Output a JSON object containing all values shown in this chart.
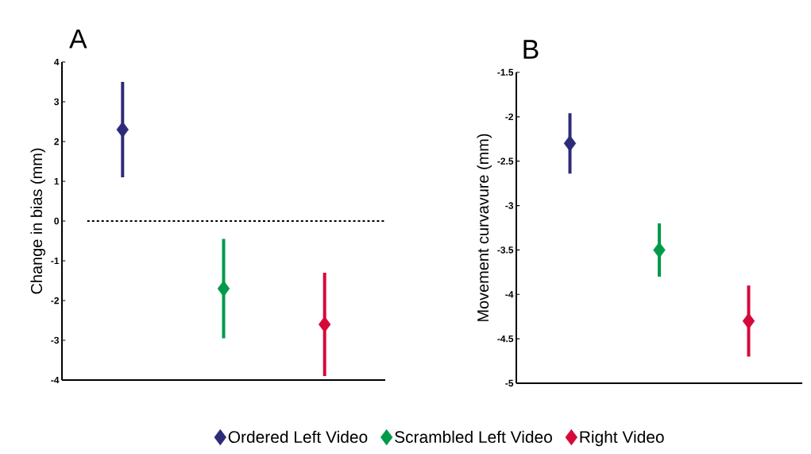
{
  "chart_data": [
    {
      "type": "scatter",
      "title": "A",
      "ylabel": "Change in bias (mm)",
      "categories": [
        null,
        null,
        null
      ],
      "ylim": [
        -4,
        4
      ],
      "yticks": [
        -4,
        -3,
        -2,
        -1,
        0,
        1,
        2,
        3,
        4
      ],
      "marker": "diamond",
      "legend": "bottom",
      "ref_lines": [
        {
          "axis": "y",
          "value": 0,
          "color": "#000000",
          "line_style": "dashed"
        }
      ],
      "series": [
        {
          "name": "Ordered Left Video",
          "color": "#2e2a7a",
          "values": [
            2.3,
            null,
            null
          ],
          "errors": [
            1.2,
            null,
            null
          ]
        },
        {
          "name": "Scrambled Left Video",
          "color": "#009a4a",
          "values": [
            null,
            -1.7,
            null
          ],
          "errors": [
            null,
            1.25,
            null
          ]
        },
        {
          "name": "Right Video",
          "color": "#d7083a",
          "values": [
            null,
            null,
            -2.6
          ],
          "errors": [
            null,
            null,
            1.3
          ]
        }
      ]
    },
    {
      "type": "scatter",
      "title": "B",
      "ylabel": "Movement curvavure (mm)",
      "categories": [
        null,
        null,
        null
      ],
      "ylim": [
        -5,
        -1.5
      ],
      "yticks": [
        -5,
        -4.5,
        -4,
        -3.5,
        -3,
        -2.5,
        -2,
        -1.5
      ],
      "marker": "diamond",
      "series": [
        {
          "color": "#2e2a7a",
          "values": [
            -2.3,
            null,
            null
          ],
          "errors": [
            0.34,
            null,
            null
          ]
        },
        {
          "color": "#009a4a",
          "values": [
            null,
            -3.5,
            null
          ],
          "errors": [
            null,
            0.3,
            null
          ]
        },
        {
          "color": "#d7083a",
          "values": [
            null,
            null,
            -4.3
          ],
          "errors": [
            null,
            null,
            0.4
          ]
        }
      ]
    }
  ]
}
